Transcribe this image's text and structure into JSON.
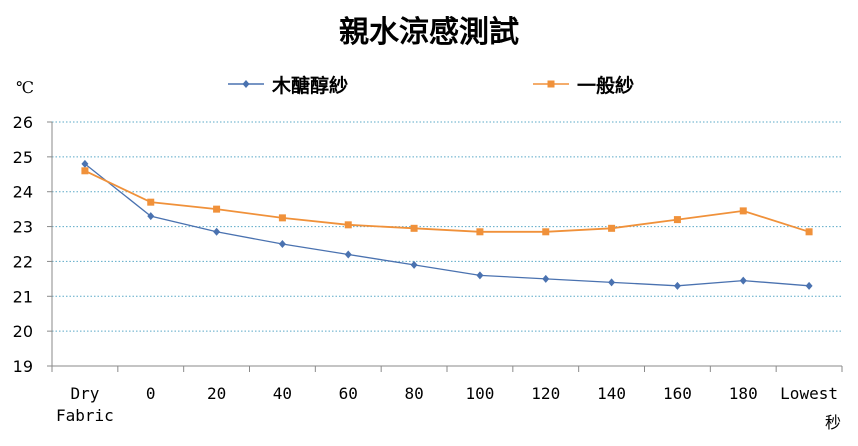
{
  "chart_data": {
    "type": "line",
    "title": "親水涼感測試",
    "ylabel": "℃",
    "xlabel": "秒",
    "categories": [
      "Dry Fabric",
      "0",
      "20",
      "40",
      "60",
      "80",
      "100",
      "120",
      "140",
      "160",
      "180",
      "Lowest"
    ],
    "ylim": [
      19,
      26
    ],
    "yticks": [
      19,
      20,
      21,
      22,
      23,
      24,
      25,
      26
    ],
    "grid": true,
    "legend_position": "top",
    "series": [
      {
        "name": "木醣醇紗",
        "color": "#4a72b0",
        "marker": "diamond",
        "values": [
          24.8,
          23.3,
          22.85,
          22.5,
          22.2,
          21.9,
          21.6,
          21.5,
          21.4,
          21.3,
          21.45,
          21.3
        ]
      },
      {
        "name": "一般紗",
        "color": "#f0913a",
        "marker": "square",
        "values": [
          24.6,
          23.7,
          23.5,
          23.25,
          23.05,
          22.95,
          22.85,
          22.85,
          22.95,
          23.2,
          23.45,
          22.85
        ]
      }
    ]
  }
}
